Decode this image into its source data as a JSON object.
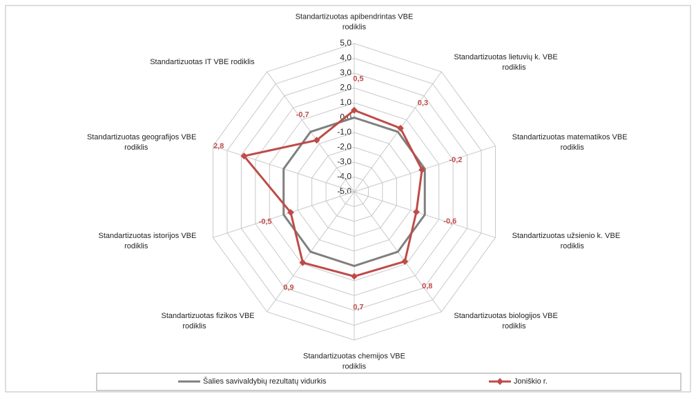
{
  "chart_data": {
    "type": "radar",
    "categories": [
      "Standartizuotas apibendrintas VBE rodiklis",
      "Standartizuotas lietuvių k. VBE rodiklis",
      "Standartizuotas matematikos VBE rodiklis",
      "Standartizuotas užsienio k. VBE rodiklis",
      "Standartizuotas biologijos VBE rodiklis",
      "Standartizuotas chemijos  VBE rodiklis",
      "Standartizuotas fizikos  VBE rodiklis",
      "Standartizuotas istorijos VBE rodiklis",
      "Standartizuotas geografijos VBE rodiklis",
      "Standartizuotas IT  VBE rodiklis"
    ],
    "series": [
      {
        "name": "Šalies savivaldybių rezultatų vidurkis",
        "color": "#7f7f7f",
        "values": [
          0,
          0,
          0,
          0,
          0,
          0,
          0,
          0,
          0,
          0
        ]
      },
      {
        "name": "Joniškio r.",
        "color": "#be4b48",
        "values": [
          0.5,
          0.3,
          -0.2,
          -0.6,
          0.8,
          0.7,
          0.9,
          -0.5,
          2.8,
          -0.7
        ],
        "value_labels": [
          "0,5",
          "0,3",
          "-0,2",
          "-0,6",
          "0,8",
          "0,7",
          "0,9",
          "-0,5",
          "2,8",
          "-0,7"
        ]
      }
    ],
    "ylim": [
      -5,
      5
    ],
    "yticks": [
      {
        "value": -5,
        "label": "-5,0"
      },
      {
        "value": -4,
        "label": "-4,0"
      },
      {
        "value": -3,
        "label": "-3,0"
      },
      {
        "value": -2,
        "label": "-2,0"
      },
      {
        "value": -1,
        "label": "-1,0"
      },
      {
        "value": 0,
        "label": "0,0"
      },
      {
        "value": 1,
        "label": "1,0"
      },
      {
        "value": 2,
        "label": "2,0"
      },
      {
        "value": 3,
        "label": "3,0"
      },
      {
        "value": 4,
        "label": "4,0"
      },
      {
        "value": 5,
        "label": "5,0"
      }
    ],
    "grid": true,
    "legend": "bottom"
  }
}
